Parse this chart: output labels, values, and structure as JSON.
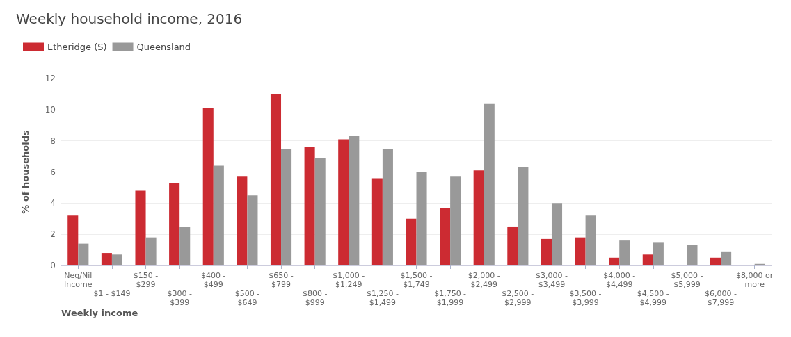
{
  "chart_data": {
    "type": "bar",
    "title": "Weekly household income, 2016",
    "xlabel": "Weekly income",
    "ylabel": "% of households",
    "categories": [
      "Neg/Nil Income",
      "$1 - $149",
      "$150 - $299",
      "$300 - $399",
      "$400 - $499",
      "$500 - $649",
      "$650 - $799",
      "$800 - $999",
      "$1,000 - $1,249",
      "$1,250 - $1,499",
      "$1,500 - $1,749",
      "$1,750 - $1,999",
      "$2,000 - $2,499",
      "$2,500 - $2,999",
      "$3,000 - $3,499",
      "$3,500 - $3,999",
      "$4,000 - $4,499",
      "$4,500 - $4,999",
      "$5,000 - $5,999",
      "$6,000 - $7,999",
      "$8,000 or more"
    ],
    "series": [
      {
        "name": "Etheridge (S)",
        "color": "#cc2b32",
        "values": [
          3.2,
          0.8,
          4.8,
          5.3,
          10.1,
          5.7,
          11.0,
          7.6,
          8.1,
          5.6,
          3.0,
          3.7,
          6.1,
          2.5,
          1.7,
          1.8,
          0.5,
          0.7,
          0,
          0.5,
          0
        ]
      },
      {
        "name": "Queensland",
        "color": "#999999",
        "values": [
          1.4,
          0.7,
          1.8,
          2.5,
          6.4,
          4.5,
          7.5,
          6.9,
          8.3,
          7.5,
          6.0,
          5.7,
          10.4,
          6.3,
          4.0,
          3.2,
          1.6,
          1.5,
          1.3,
          0.9,
          0.1
        ]
      }
    ],
    "ylim": [
      0,
      12
    ],
    "yticks": [
      0,
      2,
      4,
      6,
      8,
      10,
      12
    ],
    "grid": "y",
    "legend": "top left"
  }
}
